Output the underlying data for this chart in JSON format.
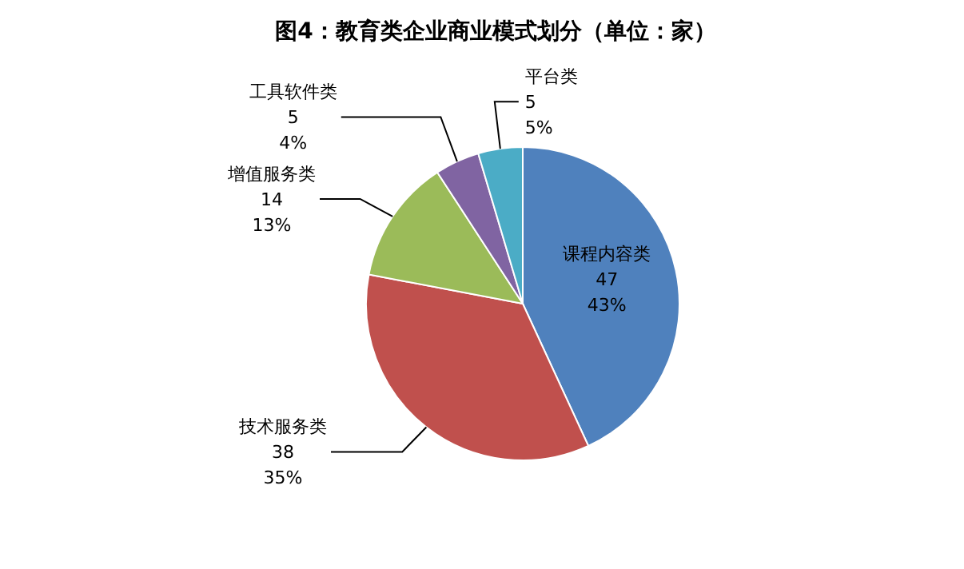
{
  "chart_data": {
    "type": "pie",
    "title": "图4：教育类企业商业模式划分（单位：家）",
    "categories": [
      "课程内容类",
      "技术服务类",
      "增值服务类",
      "工具软件类",
      "平台类"
    ],
    "values": [
      47,
      38,
      14,
      5,
      5
    ],
    "colors": [
      "#4f81bd",
      "#c0504d",
      "#9bbb59",
      "#8064a2",
      "#4bacc6"
    ],
    "value_labels": [
      "47\n43%",
      "38\n35%",
      "14\n13%",
      "5\n4%",
      "5\n5%"
    ]
  }
}
